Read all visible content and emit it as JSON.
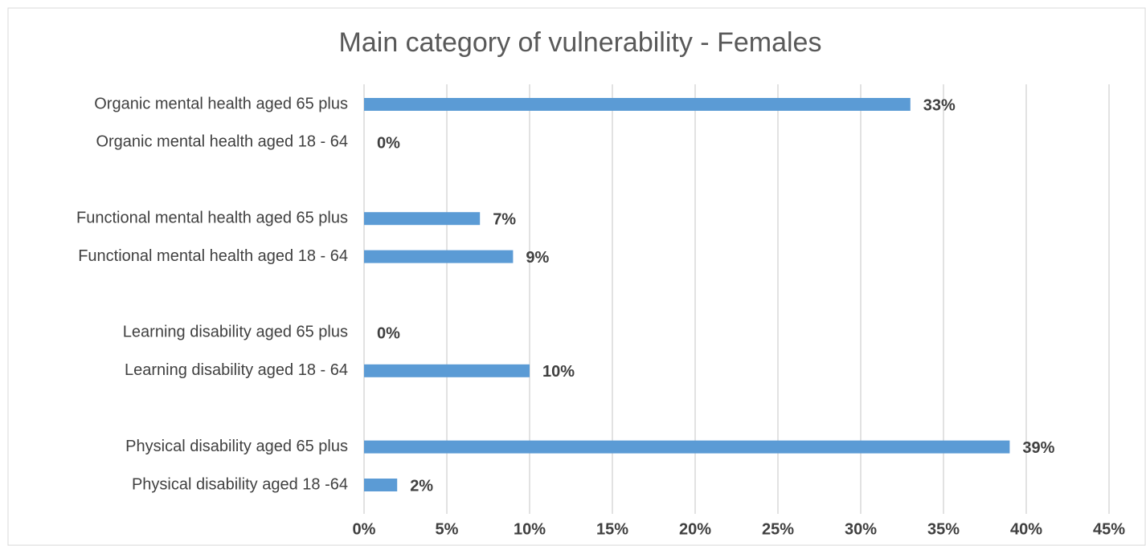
{
  "chart_data": {
    "type": "bar",
    "orientation": "horizontal",
    "title": "Main category of vulnerability - Females",
    "categories": [
      "Organic mental health aged 65 plus",
      "Organic mental health aged 18 - 64",
      null,
      "Functional mental health aged 65 plus",
      "Functional mental health aged 18 - 64",
      null,
      "Learning disability aged 65 plus",
      "Learning disability aged 18 - 64",
      null,
      "Physical disability aged 65 plus",
      "Physical disability aged 18 -64"
    ],
    "values": [
      33,
      0,
      null,
      7,
      9,
      null,
      0,
      10,
      null,
      39,
      2
    ],
    "value_labels": [
      "33%",
      "0%",
      null,
      "7%",
      "9%",
      null,
      "0%",
      "10%",
      null,
      "39%",
      "2%"
    ],
    "color": "#5b9bd5",
    "xlim": [
      0,
      45
    ],
    "xticks": [
      {
        "value": 0,
        "label": "0%"
      },
      {
        "value": 5,
        "label": "5%"
      },
      {
        "value": 10,
        "label": "10%"
      },
      {
        "value": 15,
        "label": "15%"
      },
      {
        "value": 20,
        "label": "20%"
      },
      {
        "value": 25,
        "label": "25%"
      },
      {
        "value": 30,
        "label": "30%"
      },
      {
        "value": 35,
        "label": "35%"
      },
      {
        "value": 40,
        "label": "40%"
      },
      {
        "value": 45,
        "label": "45%"
      }
    ],
    "grid": true
  }
}
